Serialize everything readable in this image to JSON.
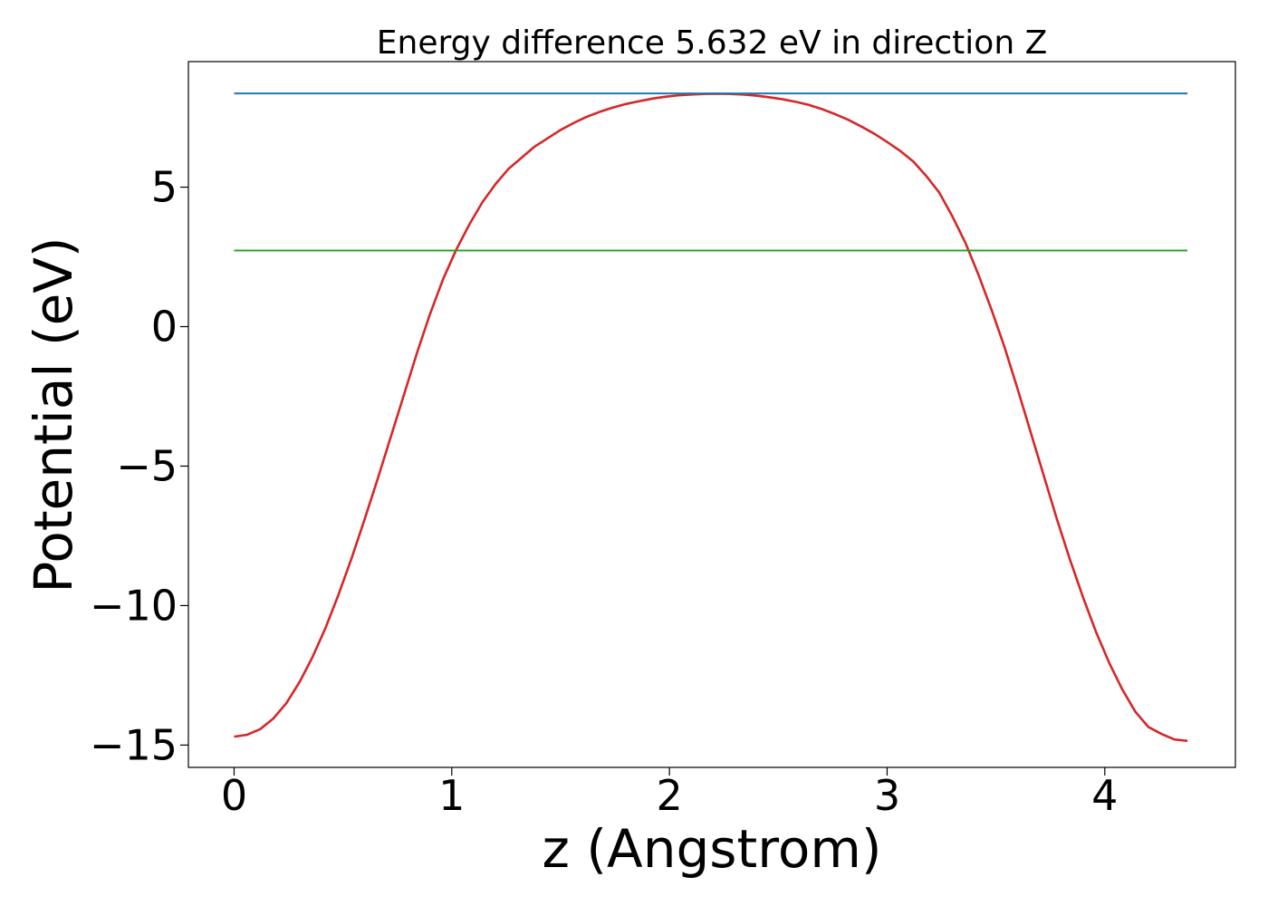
{
  "chart_data": {
    "type": "line",
    "title": "Energy difference 5.632 eV in direction Z",
    "xlabel": "z (Angstrom)",
    "ylabel": "Potential (eV)",
    "xlim": [
      -0.21,
      4.6
    ],
    "ylim": [
      -15.8,
      9.5
    ],
    "xticks": [
      0,
      1,
      2,
      3,
      4
    ],
    "xtick_labels": [
      "0",
      "1",
      "2",
      "3",
      "4"
    ],
    "yticks": [
      -15,
      -10,
      -5,
      0,
      5
    ],
    "ytick_labels": [
      "−15",
      "−10",
      "−5",
      "0",
      "5"
    ],
    "grid": false,
    "legend": "none",
    "series": [
      {
        "color": "#d62728",
        "x": [
          0,
          0.06,
          0.12,
          0.18,
          0.24,
          0.3,
          0.36,
          0.42,
          0.48,
          0.54,
          0.6,
          0.66,
          0.72,
          0.78,
          0.84,
          0.9,
          0.96,
          1.02,
          1.08,
          1.14,
          1.2,
          1.26,
          1.32,
          1.38,
          1.44,
          1.5,
          1.56,
          1.62,
          1.68,
          1.74,
          1.8,
          1.86,
          1.92,
          1.98,
          2.04,
          2.1,
          2.16,
          2.22,
          2.28,
          2.34,
          2.4,
          2.46,
          2.52,
          2.58,
          2.64,
          2.7,
          2.76,
          2.82,
          2.88,
          2.94,
          3.0,
          3.06,
          3.12,
          3.18,
          3.24,
          3.3,
          3.36,
          3.42,
          3.48,
          3.54,
          3.6,
          3.66,
          3.72,
          3.78,
          3.84,
          3.9,
          3.96,
          4.02,
          4.08,
          4.14,
          4.2,
          4.26,
          4.32,
          4.38
        ],
        "y": [
          -14.7,
          -14.63,
          -14.43,
          -14.05,
          -13.5,
          -12.75,
          -11.85,
          -10.8,
          -9.6,
          -8.3,
          -6.9,
          -5.45,
          -3.95,
          -2.45,
          -0.95,
          0.45,
          1.7,
          2.75,
          3.65,
          4.45,
          5.1,
          5.65,
          6.05,
          6.45,
          6.75,
          7.05,
          7.3,
          7.52,
          7.7,
          7.85,
          7.98,
          8.08,
          8.17,
          8.24,
          8.29,
          8.32,
          8.34,
          8.35,
          8.34,
          8.32,
          8.28,
          8.22,
          8.15,
          8.06,
          7.95,
          7.8,
          7.62,
          7.42,
          7.18,
          6.92,
          6.62,
          6.3,
          5.92,
          5.4,
          4.8,
          3.95,
          3.0,
          1.85,
          0.6,
          -0.75,
          -2.25,
          -3.8,
          -5.35,
          -6.9,
          -8.35,
          -9.7,
          -10.95,
          -12.05,
          -13.0,
          -13.8,
          -14.35,
          -14.6,
          -14.8,
          -14.85
        ]
      },
      {
        "color": "#1f77b4",
        "x": [
          0,
          4.38
        ],
        "y": [
          8.36,
          8.36
        ]
      },
      {
        "color": "#2ca02c",
        "x": [
          0,
          4.38
        ],
        "y": [
          2.73,
          2.73
        ]
      }
    ]
  }
}
